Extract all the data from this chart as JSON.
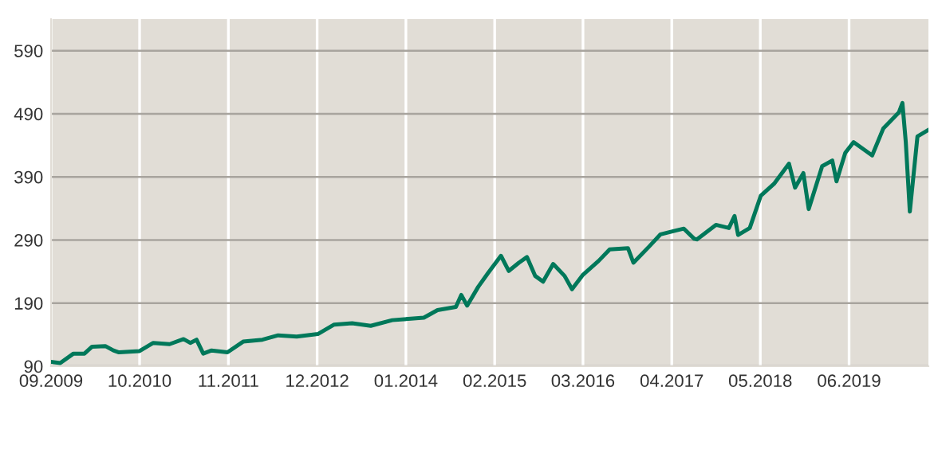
{
  "chart_data": {
    "type": "line",
    "x": [
      "2009-09-01",
      "2009-10-12",
      "2009-12-10",
      "2010-01-28",
      "2010-03-03",
      "2010-05-01",
      "2010-06-06",
      "2010-07-01",
      "2010-10-01",
      "2010-12-01",
      "2011-02-12",
      "2011-04-15",
      "2011-05-15",
      "2011-06-12",
      "2011-07-12",
      "2011-08-18",
      "2011-10-28",
      "2012-01-06",
      "2012-04-01",
      "2012-06-10",
      "2012-09-01",
      "2012-12-04",
      "2013-02-15",
      "2013-05-06",
      "2013-07-28",
      "2013-11-01",
      "2014-01-12",
      "2014-03-22",
      "2014-05-22",
      "2014-08-12",
      "2014-09-05",
      "2014-10-01",
      "2014-11-20",
      "2015-01-01",
      "2015-03-01",
      "2015-04-05",
      "2015-05-20",
      "2015-06-25",
      "2015-08-01",
      "2015-09-05",
      "2015-10-20",
      "2015-12-10",
      "2016-01-12",
      "2016-03-01",
      "2016-05-10",
      "2016-06-28",
      "2016-09-18",
      "2016-10-12",
      "2016-12-22",
      "2017-02-10",
      "2017-04-18",
      "2017-05-25",
      "2017-07-10",
      "2017-07-22",
      "2017-10-15",
      "2017-12-12",
      "2018-01-06",
      "2018-01-22",
      "2018-03-15",
      "2018-05-03",
      "2018-07-01",
      "2018-09-06",
      "2018-10-03",
      "2018-11-09",
      "2018-12-03",
      "2019-02-01",
      "2019-03-18",
      "2019-04-06",
      "2019-05-15",
      "2019-06-21",
      "2019-09-12",
      "2019-11-01",
      "2020-01-09",
      "2020-01-25",
      "2020-02-09",
      "2020-02-27",
      "2020-04-01",
      "2020-05-18"
    ],
    "series": [
      {
        "color": "#00785a",
        "values": [
          97,
          95,
          110,
          110,
          121,
          122,
          115,
          112,
          114,
          127,
          125,
          133,
          127,
          132,
          110,
          115,
          112,
          129,
          132,
          139,
          137,
          141,
          156,
          158,
          154,
          163,
          165,
          167,
          179,
          184,
          203,
          186,
          216,
          237,
          265,
          241,
          254,
          263,
          233,
          224,
          252,
          233,
          212,
          235,
          257,
          275,
          277,
          254,
          280,
          299,
          305,
          308,
          292,
          291,
          314,
          309,
          328,
          298,
          309,
          360,
          379,
          411,
          373,
          396,
          339,
          407,
          416,
          383,
          428,
          445,
          424,
          467,
          492,
          507,
          445,
          335,
          454,
          464
        ]
      }
    ],
    "xlim": [
      "2009-09-01",
      "2020-05-20"
    ],
    "ylim": [
      90,
      640
    ],
    "xticks": [
      {
        "value": "2009-09-01",
        "label": "09.2009"
      },
      {
        "value": "2010-10-01",
        "label": "10.2010"
      },
      {
        "value": "2011-11-01",
        "label": "11.2011"
      },
      {
        "value": "2012-12-01",
        "label": "12.2012"
      },
      {
        "value": "2014-01-01",
        "label": "01.2014"
      },
      {
        "value": "2015-02-01",
        "label": "02.2015"
      },
      {
        "value": "2016-03-01",
        "label": "03.2016"
      },
      {
        "value": "2017-04-01",
        "label": "04.2017"
      },
      {
        "value": "2018-05-01",
        "label": "05.2018"
      },
      {
        "value": "2019-06-01",
        "label": "06.2019"
      }
    ],
    "yticks": [
      90,
      190,
      290,
      390,
      490,
      590
    ],
    "grid": true,
    "marker": "none",
    "line_style": "solid"
  }
}
